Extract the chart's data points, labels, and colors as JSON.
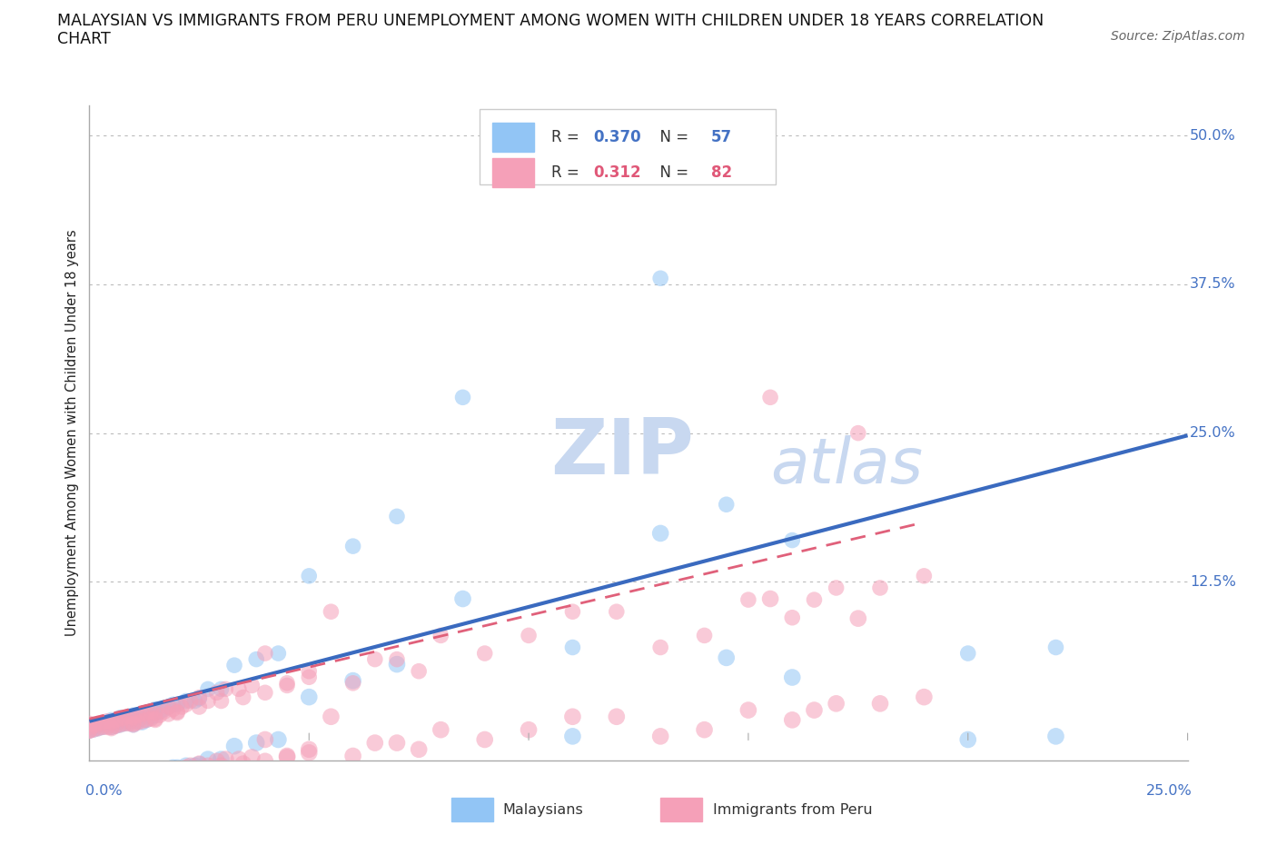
{
  "title_line1": "MALAYSIAN VS IMMIGRANTS FROM PERU UNEMPLOYMENT AMONG WOMEN WITH CHILDREN UNDER 18 YEARS CORRELATION",
  "title_line2": "CHART",
  "source": "Source: ZipAtlas.com",
  "ylabel": "Unemployment Among Women with Children Under 18 years",
  "yticks": [
    0.0,
    0.125,
    0.25,
    0.375,
    0.5
  ],
  "ytick_labels": [
    "",
    "12.5%",
    "25.0%",
    "37.5%",
    "50.0%"
  ],
  "xlim": [
    0.0,
    0.25
  ],
  "ylim": [
    -0.025,
    0.525
  ],
  "malaysians_R": 0.37,
  "malaysians_N": 57,
  "peru_R": 0.312,
  "peru_N": 82,
  "malaysians_color": "#92c5f5",
  "peru_color": "#f5a0b8",
  "regression_blue_color": "#3a6abf",
  "regression_pink_color": "#e0607a",
  "watermark_ZIP": "ZIP",
  "watermark_atlas": "atlas",
  "watermark_color": "#c8d8f0",
  "legend_border_color": "#cccccc",
  "malaysians_x": [
    0.0,
    0.0,
    0.001,
    0.001,
    0.002,
    0.002,
    0.003,
    0.003,
    0.004,
    0.004,
    0.005,
    0.005,
    0.005,
    0.006,
    0.006,
    0.007,
    0.007,
    0.007,
    0.008,
    0.008,
    0.009,
    0.009,
    0.01,
    0.01,
    0.01,
    0.011,
    0.011,
    0.012,
    0.012,
    0.013,
    0.013,
    0.014,
    0.015,
    0.015,
    0.016,
    0.017,
    0.018,
    0.019,
    0.02,
    0.022,
    0.024,
    0.025,
    0.027,
    0.03,
    0.033,
    0.038,
    0.043,
    0.05,
    0.06,
    0.07,
    0.085,
    0.11,
    0.13,
    0.145,
    0.16,
    0.2,
    0.22
  ],
  "malaysians_y": [
    0.0,
    0.002,
    0.001,
    0.003,
    0.002,
    0.005,
    0.003,
    0.006,
    0.004,
    0.007,
    0.003,
    0.006,
    0.009,
    0.004,
    0.008,
    0.005,
    0.008,
    0.011,
    0.006,
    0.01,
    0.007,
    0.012,
    0.005,
    0.009,
    0.013,
    0.008,
    0.013,
    0.007,
    0.012,
    0.009,
    0.015,
    0.011,
    0.013,
    0.018,
    0.016,
    0.018,
    0.02,
    0.022,
    0.022,
    0.025,
    0.025,
    0.027,
    0.035,
    0.035,
    0.055,
    0.06,
    0.065,
    0.13,
    0.155,
    0.18,
    0.28,
    0.07,
    0.38,
    0.19,
    0.16,
    0.065,
    0.07
  ],
  "peru_x": [
    0.0,
    0.0,
    0.0,
    0.001,
    0.001,
    0.002,
    0.002,
    0.003,
    0.003,
    0.004,
    0.004,
    0.005,
    0.005,
    0.006,
    0.006,
    0.007,
    0.007,
    0.008,
    0.008,
    0.009,
    0.009,
    0.01,
    0.01,
    0.011,
    0.011,
    0.012,
    0.012,
    0.013,
    0.013,
    0.014,
    0.014,
    0.015,
    0.015,
    0.016,
    0.017,
    0.018,
    0.018,
    0.019,
    0.02,
    0.021,
    0.022,
    0.023,
    0.025,
    0.027,
    0.029,
    0.031,
    0.034,
    0.037,
    0.04,
    0.045,
    0.05,
    0.055,
    0.06,
    0.065,
    0.07,
    0.075,
    0.08,
    0.09,
    0.1,
    0.11,
    0.12,
    0.13,
    0.14,
    0.15,
    0.155,
    0.16,
    0.165,
    0.17,
    0.175,
    0.18,
    0.19,
    0.0,
    0.005,
    0.01,
    0.015,
    0.02,
    0.025,
    0.03,
    0.035,
    0.04,
    0.045,
    0.05
  ],
  "peru_y": [
    0.0,
    0.003,
    0.006,
    0.001,
    0.005,
    0.002,
    0.006,
    0.003,
    0.007,
    0.003,
    0.008,
    0.002,
    0.007,
    0.004,
    0.009,
    0.005,
    0.01,
    0.006,
    0.011,
    0.006,
    0.012,
    0.005,
    0.011,
    0.007,
    0.013,
    0.008,
    0.014,
    0.009,
    0.015,
    0.01,
    0.016,
    0.009,
    0.015,
    0.013,
    0.016,
    0.014,
    0.02,
    0.018,
    0.016,
    0.02,
    0.022,
    0.025,
    0.028,
    0.025,
    0.032,
    0.035,
    0.035,
    0.038,
    0.065,
    0.04,
    0.05,
    0.1,
    0.04,
    0.06,
    0.06,
    0.05,
    0.08,
    0.065,
    0.08,
    0.1,
    0.1,
    0.07,
    0.08,
    0.11,
    0.28,
    0.095,
    0.11,
    0.12,
    0.25,
    0.12,
    0.13,
    0.0,
    0.003,
    0.006,
    0.01,
    0.015,
    0.02,
    0.025,
    0.028,
    0.032,
    0.038,
    0.045
  ]
}
